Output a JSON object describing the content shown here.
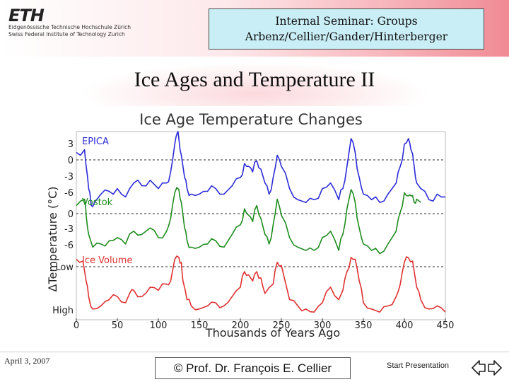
{
  "header": {
    "logo_mark": "ETH",
    "logo_line1": "Eidgenössische Technische Hochschule Zürich",
    "logo_line2": "Swiss Federal Institute of Technology Zurich",
    "seminar_line1": "Internal Seminar: Groups",
    "seminar_line2": "Arbenz/Cellier/Gander/Hinterberger"
  },
  "slide": {
    "title": "Ice Ages and Temperature II"
  },
  "chart_data": {
    "type": "line",
    "title": "Ice Age Temperature Changes",
    "xlabel": "Thousands of Years Ago",
    "ylabel": "ΔTemperature (°C)",
    "x_ticks": [
      0,
      50,
      100,
      150,
      200,
      250,
      300,
      350,
      400,
      450
    ],
    "xlim": [
      0,
      450
    ],
    "series": [
      {
        "name": "EPICA",
        "color": "#2b2bd9",
        "y_ticks": [
          "3",
          "0",
          "-3",
          "-6"
        ],
        "ylim": [
          -10,
          4
        ],
        "x": [
          0,
          10,
          12,
          15,
          18,
          22,
          30,
          40,
          50,
          60,
          70,
          80,
          90,
          100,
          110,
          115,
          120,
          123,
          125,
          128,
          132,
          135,
          140,
          150,
          160,
          170,
          180,
          190,
          200,
          205,
          210,
          215,
          220,
          225,
          230,
          235,
          240,
          245,
          250,
          260,
          270,
          280,
          290,
          300,
          310,
          320,
          325,
          330,
          335,
          340,
          345,
          350,
          360,
          370,
          380,
          390,
          395,
          400,
          405,
          408,
          412,
          415,
          420,
          430,
          440,
          450
        ],
        "y": [
          0.5,
          1.0,
          -2,
          -6,
          -9,
          -8.5,
          -7,
          -6.5,
          -6,
          -7.5,
          -5,
          -5.5,
          -4.5,
          -6,
          -5,
          -3,
          2,
          4,
          3,
          0,
          -4,
          -6,
          -7,
          -7,
          -6.5,
          -6,
          -7,
          -5.5,
          -4,
          -1.5,
          -2,
          -3,
          -1,
          -2.5,
          -5,
          -7,
          -4,
          0,
          -2,
          -6,
          -8,
          -8.5,
          -8,
          -6,
          -5,
          -8,
          -6,
          -2,
          3,
          0.5,
          -4,
          -7,
          -8,
          -8.5,
          -7,
          -5,
          -2,
          2,
          3,
          1,
          -2,
          -5,
          -6,
          -8,
          -7,
          -7.5
        ]
      },
      {
        "name": "Vostok",
        "color": "#1e8c1e",
        "y_ticks": [
          "0",
          "-3",
          "-6"
        ],
        "ylim": [
          -8.5,
          2
        ],
        "x": [
          0,
          10,
          12,
          15,
          20,
          30,
          40,
          50,
          60,
          70,
          80,
          90,
          100,
          110,
          115,
          120,
          125,
          128,
          132,
          135,
          140,
          150,
          160,
          170,
          180,
          190,
          200,
          205,
          210,
          215,
          220,
          225,
          230,
          235,
          240,
          245,
          250,
          260,
          270,
          280,
          290,
          300,
          310,
          320,
          325,
          330,
          335,
          340,
          345,
          350,
          360,
          370,
          380,
          390,
          395,
          400,
          405,
          408,
          412,
          415,
          420
        ],
        "y": [
          -0.5,
          0.5,
          -2,
          -5,
          -7,
          -6.5,
          -6,
          -5.5,
          -6.5,
          -4.5,
          -5,
          -4,
          -5.5,
          -4.5,
          -2.5,
          1.5,
          2,
          0,
          -4,
          -6,
          -7,
          -7,
          -6.5,
          -6,
          -7,
          -5,
          -3.5,
          -1,
          -2,
          -3,
          -0.5,
          -2.5,
          -5,
          -6.5,
          -3.5,
          0.5,
          -2,
          -5.5,
          -7,
          -7.5,
          -7.5,
          -5.5,
          -4.5,
          -7.5,
          -5,
          -1,
          2,
          0,
          -4,
          -6.5,
          -7.5,
          -8,
          -6.5,
          -4.5,
          -1.5,
          1.5,
          1,
          1,
          0,
          0.5,
          0
        ]
      },
      {
        "name": "Ice Volume",
        "color": "#e03030",
        "y_ticks": [
          "Low",
          "High"
        ],
        "ylim": [
          0,
          1
        ],
        "x": [
          0,
          8,
          12,
          15,
          20,
          30,
          40,
          50,
          60,
          65,
          70,
          80,
          90,
          100,
          110,
          115,
          120,
          125,
          128,
          130,
          135,
          140,
          150,
          160,
          170,
          180,
          190,
          200,
          205,
          210,
          215,
          220,
          225,
          230,
          240,
          245,
          250,
          260,
          270,
          280,
          290,
          300,
          310,
          320,
          325,
          330,
          335,
          340,
          345,
          350,
          360,
          370,
          380,
          390,
          395,
          400,
          405,
          410,
          415,
          420,
          430,
          440,
          450
        ],
        "y": [
          0.95,
          0.92,
          0.6,
          0.35,
          0.15,
          0.2,
          0.3,
          0.35,
          0.25,
          0.4,
          0.45,
          0.35,
          0.5,
          0.45,
          0.55,
          0.6,
          0.95,
          0.98,
          0.9,
          0.6,
          0.3,
          0.2,
          0.15,
          0.2,
          0.25,
          0.2,
          0.35,
          0.5,
          0.75,
          0.7,
          0.6,
          0.75,
          0.65,
          0.4,
          0.55,
          0.9,
          0.85,
          0.3,
          0.2,
          0.15,
          0.1,
          0.25,
          0.5,
          0.3,
          0.45,
          0.75,
          0.98,
          0.95,
          0.6,
          0.25,
          0.15,
          0.1,
          0.2,
          0.35,
          0.55,
          0.9,
          0.97,
          0.92,
          0.5,
          0.3,
          0.15,
          0.2,
          0.1
        ]
      }
    ]
  },
  "footer": {
    "date": "April 3, 2007",
    "copyright": "© Prof. Dr. François E. Cellier",
    "start_link": "Start Presentation"
  },
  "nav": {
    "back_icon": "hollow-left-arrow",
    "forward_icon": "hollow-right-arrow"
  }
}
